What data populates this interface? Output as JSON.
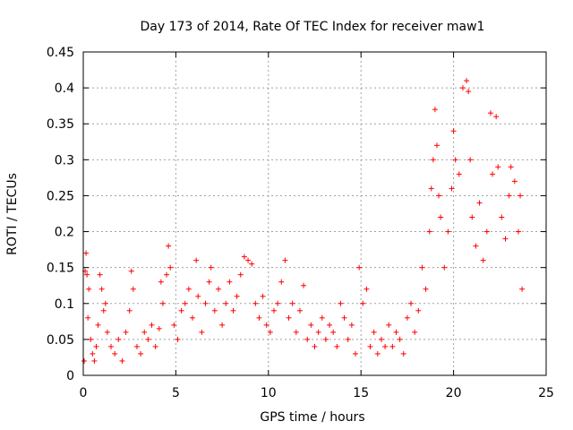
{
  "chart_data": {
    "type": "scatter",
    "title": "Day 173 of 2014, Rate Of TEC Index for receiver maw1",
    "xlabel": "GPS time / hours",
    "ylabel": "ROTI / TECUs",
    "xlim": [
      0,
      25
    ],
    "ylim": [
      0,
      0.45
    ],
    "grid": true,
    "marker": "+",
    "color": "#ff0000",
    "xticks": [
      0,
      5,
      10,
      15,
      20,
      25
    ],
    "xtick_labels": [
      "0",
      "5",
      "10",
      "15",
      "20",
      "25"
    ],
    "yticks": [
      0,
      0.05,
      0.1,
      0.15,
      0.2,
      0.25,
      0.3,
      0.35,
      0.4,
      0.45
    ],
    "ytick_labels": [
      "0",
      "0.05",
      "0.1",
      "0.15",
      "0.2",
      "0.25",
      "0.3",
      "0.35",
      "0.4",
      "0.45"
    ],
    "series": [
      {
        "name": "maw1",
        "points": [
          [
            0.05,
            0.02
          ],
          [
            0.1,
            0.145
          ],
          [
            0.15,
            0.17
          ],
          [
            0.2,
            0.14
          ],
          [
            0.25,
            0.08
          ],
          [
            0.3,
            0.12
          ],
          [
            0.4,
            0.05
          ],
          [
            0.5,
            0.03
          ],
          [
            0.6,
            0.02
          ],
          [
            0.7,
            0.04
          ],
          [
            0.8,
            0.07
          ],
          [
            0.9,
            0.14
          ],
          [
            1.0,
            0.12
          ],
          [
            1.1,
            0.09
          ],
          [
            1.2,
            0.1
          ],
          [
            1.3,
            0.06
          ],
          [
            1.5,
            0.04
          ],
          [
            1.7,
            0.03
          ],
          [
            1.9,
            0.05
          ],
          [
            2.1,
            0.02
          ],
          [
            2.3,
            0.06
          ],
          [
            2.5,
            0.09
          ],
          [
            2.6,
            0.145
          ],
          [
            2.7,
            0.12
          ],
          [
            2.9,
            0.04
          ],
          [
            3.1,
            0.03
          ],
          [
            3.3,
            0.06
          ],
          [
            3.5,
            0.05
          ],
          [
            3.7,
            0.07
          ],
          [
            3.9,
            0.04
          ],
          [
            4.1,
            0.065
          ],
          [
            4.2,
            0.13
          ],
          [
            4.3,
            0.1
          ],
          [
            4.5,
            0.14
          ],
          [
            4.6,
            0.18
          ],
          [
            4.7,
            0.15
          ],
          [
            4.9,
            0.07
          ],
          [
            5.1,
            0.05
          ],
          [
            5.3,
            0.09
          ],
          [
            5.5,
            0.1
          ],
          [
            5.7,
            0.12
          ],
          [
            5.9,
            0.08
          ],
          [
            6.1,
            0.16
          ],
          [
            6.2,
            0.11
          ],
          [
            6.4,
            0.06
          ],
          [
            6.6,
            0.1
          ],
          [
            6.8,
            0.13
          ],
          [
            6.9,
            0.15
          ],
          [
            7.1,
            0.09
          ],
          [
            7.3,
            0.12
          ],
          [
            7.5,
            0.07
          ],
          [
            7.7,
            0.1
          ],
          [
            7.9,
            0.13
          ],
          [
            8.1,
            0.09
          ],
          [
            8.3,
            0.11
          ],
          [
            8.5,
            0.14
          ],
          [
            8.7,
            0.165
          ],
          [
            8.9,
            0.16
          ],
          [
            9.1,
            0.155
          ],
          [
            9.3,
            0.1
          ],
          [
            9.5,
            0.08
          ],
          [
            9.7,
            0.11
          ],
          [
            9.9,
            0.07
          ],
          [
            10.1,
            0.06
          ],
          [
            10.3,
            0.09
          ],
          [
            10.5,
            0.1
          ],
          [
            10.7,
            0.13
          ],
          [
            10.9,
            0.16
          ],
          [
            11.1,
            0.08
          ],
          [
            11.3,
            0.1
          ],
          [
            11.5,
            0.06
          ],
          [
            11.7,
            0.09
          ],
          [
            11.9,
            0.125
          ],
          [
            12.1,
            0.05
          ],
          [
            12.3,
            0.07
          ],
          [
            12.5,
            0.04
          ],
          [
            12.7,
            0.06
          ],
          [
            12.9,
            0.08
          ],
          [
            13.1,
            0.05
          ],
          [
            13.3,
            0.07
          ],
          [
            13.5,
            0.06
          ],
          [
            13.7,
            0.04
          ],
          [
            13.9,
            0.1
          ],
          [
            14.1,
            0.08
          ],
          [
            14.3,
            0.05
          ],
          [
            14.5,
            0.07
          ],
          [
            14.7,
            0.03
          ],
          [
            14.9,
            0.15
          ],
          [
            15.1,
            0.1
          ],
          [
            15.3,
            0.12
          ],
          [
            15.5,
            0.04
          ],
          [
            15.7,
            0.06
          ],
          [
            15.9,
            0.03
          ],
          [
            16.1,
            0.05
          ],
          [
            16.3,
            0.04
          ],
          [
            16.5,
            0.07
          ],
          [
            16.7,
            0.04
          ],
          [
            16.9,
            0.06
          ],
          [
            17.1,
            0.05
          ],
          [
            17.3,
            0.03
          ],
          [
            17.5,
            0.08
          ],
          [
            17.7,
            0.1
          ],
          [
            17.9,
            0.06
          ],
          [
            18.1,
            0.09
          ],
          [
            18.3,
            0.15
          ],
          [
            18.5,
            0.12
          ],
          [
            18.7,
            0.2
          ],
          [
            18.8,
            0.26
          ],
          [
            18.9,
            0.3
          ],
          [
            19.0,
            0.37
          ],
          [
            19.1,
            0.32
          ],
          [
            19.2,
            0.25
          ],
          [
            19.3,
            0.22
          ],
          [
            19.5,
            0.15
          ],
          [
            19.7,
            0.2
          ],
          [
            19.9,
            0.26
          ],
          [
            20.0,
            0.34
          ],
          [
            20.1,
            0.3
          ],
          [
            20.3,
            0.28
          ],
          [
            20.5,
            0.4
          ],
          [
            20.7,
            0.41
          ],
          [
            20.8,
            0.395
          ],
          [
            20.9,
            0.3
          ],
          [
            21.0,
            0.22
          ],
          [
            21.2,
            0.18
          ],
          [
            21.4,
            0.24
          ],
          [
            21.6,
            0.16
          ],
          [
            21.8,
            0.2
          ],
          [
            22.0,
            0.365
          ],
          [
            22.1,
            0.28
          ],
          [
            22.3,
            0.36
          ],
          [
            22.4,
            0.29
          ],
          [
            22.6,
            0.22
          ],
          [
            22.8,
            0.19
          ],
          [
            23.0,
            0.25
          ],
          [
            23.1,
            0.29
          ],
          [
            23.3,
            0.27
          ],
          [
            23.5,
            0.2
          ],
          [
            23.6,
            0.25
          ],
          [
            23.7,
            0.12
          ]
        ]
      }
    ]
  }
}
